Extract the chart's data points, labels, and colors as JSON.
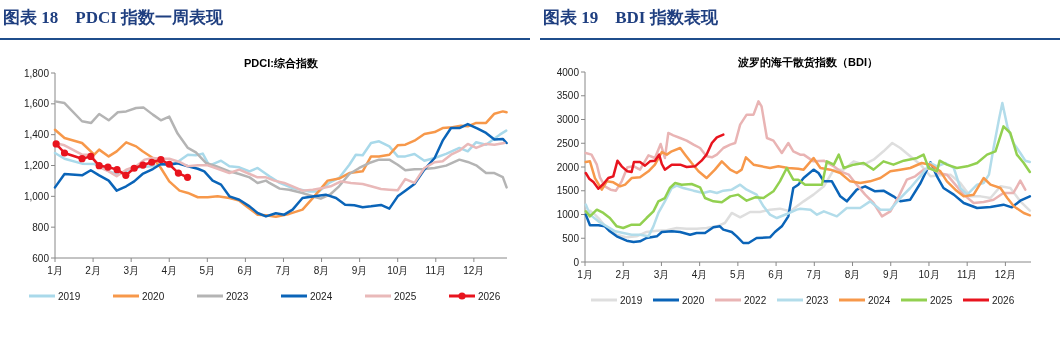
{
  "chart_data": [
    {
      "type": "line",
      "title": "图表 18　PDCI 指数一周表现",
      "subtitle": "PDCI:综合指数",
      "legend": "bottom",
      "xlim": [
        1,
        12.87
      ],
      "xticks": [
        {
          "value": 1,
          "label": "1月"
        },
        {
          "value": 2,
          "label": "2月"
        },
        {
          "value": 3,
          "label": "3月"
        },
        {
          "value": 4,
          "label": "4月"
        },
        {
          "value": 5,
          "label": "5月"
        },
        {
          "value": 6,
          "label": "6月"
        },
        {
          "value": 7,
          "label": "7月"
        },
        {
          "value": 8,
          "label": "8月"
        },
        {
          "value": 9,
          "label": "9月"
        },
        {
          "value": 10,
          "label": "10月"
        },
        {
          "value": 11,
          "label": "11月"
        },
        {
          "value": 12,
          "label": "12月"
        }
      ],
      "ylim": [
        600,
        1800
      ],
      "yticks": [
        600,
        800,
        {
          "value": 1000,
          "label": "1,000"
        },
        {
          "value": 1200,
          "label": "1,200"
        },
        {
          "value": 1400,
          "label": "1,400"
        },
        {
          "value": 1600,
          "label": "1,600"
        },
        {
          "value": 1800,
          "label": "1,800"
        }
      ],
      "series": [
        {
          "name": "2019",
          "color": "#a9d9ea",
          "x": [
            1,
            1.25,
            1.71,
            2.03,
            2.43,
            2.65,
            2.95,
            3.22,
            3.52,
            4.18,
            4.49,
            4.7,
            4.88,
            5.05,
            5.36,
            5.58,
            5.84,
            6.11,
            6.32,
            6.63,
            6.9,
            7.24,
            7.68,
            7.94,
            8.2,
            8.46,
            8.73,
            8.9,
            9.08,
            9.3,
            9.51,
            9.78,
            10,
            10.2,
            10.44,
            10.7,
            10.97,
            11.27,
            11.62,
            11.84,
            12.06,
            12.32,
            12.68,
            12.85
          ],
          "values": [
            1281,
            1244,
            1212,
            1210,
            1162,
            1141,
            1173,
            1188,
            1195,
            1216,
            1270,
            1266,
            1277,
            1199,
            1231,
            1195,
            1188,
            1162,
            1184,
            1130,
            1087,
            1054,
            1032,
            1032,
            1087,
            1119,
            1205,
            1270,
            1266,
            1346,
            1357,
            1324,
            1259,
            1259,
            1275,
            1231,
            1249,
            1275,
            1314,
            1292,
            1351,
            1335,
            1400,
            1426
          ]
        },
        {
          "name": "2020",
          "color": "#f7984a",
          "x": [
            1,
            1.25,
            1.71,
            2.03,
            2.16,
            2.41,
            2.62,
            2.87,
            3.13,
            3.3,
            3.57,
            3.78,
            4,
            4.27,
            4.49,
            4.75,
            5.01,
            5.27,
            5.58,
            5.84,
            6.06,
            6.32,
            6.54,
            6.8,
            7.15,
            7.5,
            7.81,
            8.16,
            8.46,
            8.73,
            9.08,
            9.3,
            9.51,
            9.78,
            10,
            10.2,
            10.44,
            10.7,
            10.97,
            11.18,
            11.44,
            11.66,
            11.84,
            12.06,
            12.32,
            12.54,
            12.76,
            12.86
          ],
          "values": [
            1432,
            1378,
            1346,
            1270,
            1303,
            1259,
            1292,
            1350,
            1324,
            1292,
            1249,
            1184,
            1097,
            1037,
            1022,
            994,
            994,
            1000,
            989,
            972,
            929,
            881,
            877,
            868,
            886,
            914,
            1000,
            1102,
            1115,
            1151,
            1162,
            1259,
            1259,
            1270,
            1331,
            1335,
            1361,
            1404,
            1417,
            1443,
            1448,
            1458,
            1454,
            1476,
            1476,
            1536,
            1551,
            1545
          ]
        },
        {
          "name": "2023",
          "color": "#b4b4b4",
          "x": [
            1,
            1.25,
            1.71,
            1.95,
            2.16,
            2.41,
            2.65,
            2.87,
            3.13,
            3.32,
            3.57,
            3.78,
            4,
            4.22,
            4.49,
            4.7,
            4.97,
            5.23,
            5.58,
            5.84,
            6.11,
            6.32,
            6.54,
            6.63,
            6.9,
            7.15,
            7.5,
            7.85,
            7.98,
            8.24,
            8.46,
            8.73,
            8.99,
            9.25,
            9.51,
            9.78,
            10,
            10.2,
            10.44,
            10.7,
            10.97,
            11.27,
            11.62,
            11.84,
            12.06,
            12.32,
            12.54,
            12.76,
            12.86
          ],
          "values": [
            1616,
            1605,
            1487,
            1476,
            1534,
            1493,
            1545,
            1551,
            1573,
            1577,
            1530,
            1493,
            1517,
            1407,
            1314,
            1285,
            1216,
            1195,
            1162,
            1145,
            1123,
            1087,
            1102,
            1087,
            1050,
            1043,
            1022,
            994,
            985,
            1015,
            1065,
            1145,
            1184,
            1216,
            1238,
            1238,
            1205,
            1169,
            1175,
            1177,
            1184,
            1199,
            1238,
            1223,
            1201,
            1151,
            1151,
            1125,
            1058
          ]
        },
        {
          "name": "2024",
          "color": "#0a64b8",
          "x": [
            1,
            1.25,
            1.71,
            1.94,
            2.16,
            2.41,
            2.62,
            2.87,
            3.08,
            3.3,
            3.57,
            3.78,
            4,
            4.22,
            4.49,
            4.75,
            4.92,
            5.14,
            5.36,
            5.58,
            5.84,
            6.11,
            6.32,
            6.54,
            6.8,
            7.02,
            7.24,
            7.5,
            7.81,
            8.11,
            8.38,
            8.62,
            8.86,
            9.08,
            9.3,
            9.56,
            9.78,
            10,
            10.2,
            10.44,
            10.7,
            10.97,
            11.18,
            11.4,
            11.62,
            11.84,
            12.1,
            12.32,
            12.54,
            12.76,
            12.86
          ],
          "values": [
            1058,
            1145,
            1136,
            1169,
            1136,
            1102,
            1037,
            1065,
            1097,
            1145,
            1177,
            1210,
            1205,
            1214,
            1195,
            1179,
            1162,
            1102,
            1076,
            1000,
            978,
            935,
            892,
            870,
            890,
            881,
            914,
            989,
            1000,
            1011,
            989,
            946,
            942,
            929,
            935,
            944,
            920,
            1000,
            1037,
            1080,
            1173,
            1249,
            1361,
            1443,
            1443,
            1469,
            1439,
            1411,
            1368,
            1372,
            1346
          ]
        },
        {
          "name": "2025",
          "color": "#e9b9b9",
          "x": [
            1,
            1.25,
            1.71,
            1.94,
            2.16,
            2.41,
            2.62,
            2.87,
            3.13,
            3.35,
            3.57,
            3.78,
            4,
            4.27,
            4.49,
            4.75,
            5.01,
            5.27,
            5.58,
            5.84,
            6.11,
            6.32,
            6.54,
            6.76,
            7.02,
            7.24,
            7.5,
            7.77,
            8.03,
            8.24,
            8.51,
            8.77,
            9.08,
            9.3,
            9.56,
            9.78,
            10,
            10.2,
            10.44,
            10.7,
            10.97,
            11.18,
            11.4,
            11.62,
            11.84,
            12.06,
            12.32,
            12.54,
            12.8
          ],
          "values": [
            1346,
            1331,
            1270,
            1270,
            1190,
            1162,
            1130,
            1173,
            1195,
            1238,
            1249,
            1244,
            1244,
            1223,
            1195,
            1201,
            1201,
            1179,
            1151,
            1173,
            1145,
            1123,
            1123,
            1102,
            1087,
            1065,
            1037,
            1043,
            1054,
            1065,
            1097,
            1087,
            1080,
            1065,
            1048,
            1043,
            1039,
            1112,
            1087,
            1184,
            1221,
            1227,
            1270,
            1296,
            1340,
            1314,
            1340,
            1335,
            1346
          ]
        },
        {
          "name": "2026",
          "color": "#e8141e",
          "marker": "circle",
          "x": [
            1.03,
            1.25,
            1.71,
            1.94,
            2.16,
            2.39,
            2.63,
            2.86,
            3.08,
            3.31,
            3.54,
            3.78,
            4,
            4.24,
            4.48
          ],
          "values": [
            1340,
            1281,
            1244,
            1259,
            1199,
            1190,
            1173,
            1136,
            1182,
            1203,
            1221,
            1238,
            1208,
            1151,
            1123
          ]
        }
      ]
    },
    {
      "type": "line",
      "title": "图表 19　BDI 指数表现",
      "subtitle": "波罗的海干散货指数（BDI）",
      "legend": "bottom",
      "xlim": [
        1,
        12.67
      ],
      "xticks": [
        {
          "value": 1,
          "label": "1月"
        },
        {
          "value": 2,
          "label": "2月"
        },
        {
          "value": 3,
          "label": "3月"
        },
        {
          "value": 4,
          "label": "4月"
        },
        {
          "value": 5,
          "label": "5月"
        },
        {
          "value": 6,
          "label": "6月"
        },
        {
          "value": 7,
          "label": "7月"
        },
        {
          "value": 8,
          "label": "8月"
        },
        {
          "value": 9,
          "label": "9月"
        },
        {
          "value": 10,
          "label": "10月"
        },
        {
          "value": 11,
          "label": "11月"
        },
        {
          "value": 12,
          "label": "12月"
        }
      ],
      "ylim": [
        0,
        4000
      ],
      "yticks": [
        0,
        500,
        1000,
        1500,
        2000,
        2500,
        3000,
        3500,
        4000
      ],
      "series": [
        {
          "name": "2019",
          "color": "#dedede",
          "x": [
            1.02,
            1.13,
            1.26,
            1.39,
            1.57,
            1.83,
            2.09,
            2.35,
            2.61,
            2.88,
            3.14,
            3.4,
            3.66,
            3.92,
            4.18,
            4.45,
            4.66,
            4.84,
            5.06,
            5.32,
            5.58,
            5.84,
            6.1,
            6.37,
            6.72,
            6.98,
            7.25,
            7.51,
            7.77,
            8.03,
            8.29,
            8.55,
            8.81,
            9.04,
            9.25,
            9.51,
            9.78,
            10.04,
            10.3,
            10.56,
            10.82,
            11.08,
            11.35,
            11.61,
            11.87,
            12.13,
            12.39,
            12.64
          ],
          "values": [
            1067,
            1081,
            997,
            891,
            716,
            575,
            519,
            540,
            632,
            660,
            667,
            716,
            702,
            702,
            716,
            751,
            821,
            1032,
            940,
            1053,
            1053,
            1102,
            1123,
            1067,
            1277,
            1418,
            1593,
            1944,
            1944,
            2119,
            2049,
            2154,
            2330,
            2505,
            2400,
            2225,
            2049,
            1804,
            1825,
            1839,
            1663,
            1382,
            1382,
            1347,
            1593,
            1558,
            1277,
            1081
          ]
        },
        {
          "name": "2020",
          "color": "#0a64b8",
          "x": [
            1.02,
            1.13,
            1.35,
            1.52,
            1.65,
            1.83,
            2.09,
            2.27,
            2.44,
            2.61,
            2.88,
            3.01,
            3.27,
            3.49,
            3.75,
            3.92,
            4.14,
            4.36,
            4.53,
            4.62,
            4.84,
            4.97,
            5.14,
            5.28,
            5.49,
            5.84,
            5.97,
            6.15,
            6.32,
            6.45,
            6.58,
            6.72,
            6.98,
            7.11,
            7.25,
            7.46,
            7.68,
            7.85,
            8.11,
            8.33,
            8.59,
            8.81,
            9.07,
            9.25,
            9.51,
            9.78,
            10.04,
            10.21,
            10.38,
            10.65,
            10.91,
            11.26,
            11.61,
            11.95,
            12.17,
            12.39,
            12.64
          ],
          "values": [
            997,
            772,
            772,
            751,
            646,
            540,
            449,
            421,
            435,
            505,
            540,
            632,
            646,
            632,
            575,
            611,
            611,
            730,
            751,
            681,
            632,
            540,
            400,
            400,
            505,
            519,
            632,
            751,
            962,
            1558,
            1628,
            1769,
            1944,
            1874,
            1698,
            1698,
            1382,
            1277,
            1523,
            1593,
            1488,
            1502,
            1382,
            1277,
            1312,
            1663,
            2098,
            1804,
            1558,
            1418,
            1242,
            1137,
            1158,
            1207,
            1151,
            1291,
            1382
          ]
        },
        {
          "name": "2022",
          "color": "#e9b4b4",
          "x": [
            1.02,
            1.17,
            1.31,
            1.39,
            1.52,
            1.67,
            1.81,
            1.96,
            2.11,
            2.28,
            2.44,
            2.66,
            2.83,
            2.98,
            3.09,
            3.18,
            3.31,
            3.49,
            3.66,
            3.84,
            4.01,
            4.18,
            4.32,
            4.45,
            4.62,
            4.8,
            4.93,
            5.06,
            5.23,
            5.41,
            5.54,
            5.62,
            5.76,
            5.93,
            6.15,
            6.32,
            6.45,
            6.63,
            6.72,
            6.98,
            7.25,
            7.51,
            7.68,
            7.9,
            8.11,
            8.33,
            8.55,
            8.77,
            8.99,
            9.21,
            9.42,
            9.64,
            9.86,
            10.04,
            10.25,
            10.47,
            10.69,
            10.91,
            11.17,
            11.43,
            11.69,
            11.95,
            12.21,
            12.39,
            12.52
          ],
          "values": [
            2295,
            2260,
            2049,
            1783,
            1593,
            1523,
            1502,
            1698,
            1993,
            2014,
            1944,
            2246,
            2190,
            2484,
            2190,
            2716,
            2667,
            2611,
            2555,
            2470,
            2400,
            2225,
            2204,
            2260,
            2400,
            2470,
            2505,
            2891,
            3102,
            3102,
            3383,
            3277,
            2611,
            2555,
            2295,
            2505,
            2330,
            2260,
            2260,
            2119,
            2133,
            2014,
            1909,
            1839,
            1628,
            1418,
            1242,
            961,
            1067,
            1382,
            1733,
            1804,
            1944,
            1979,
            1874,
            1839,
            1628,
            1418,
            1242,
            1263,
            1312,
            1453,
            1453,
            1712,
            1523
          ]
        },
        {
          "name": "2023",
          "color": "#b2dcea",
          "x": [
            1.02,
            1.13,
            1.35,
            1.57,
            1.79,
            2,
            2.22,
            2.44,
            2.66,
            2.79,
            2.92,
            3.09,
            3.27,
            3.4,
            3.57,
            3.84,
            4.1,
            4.27,
            4.45,
            4.62,
            4.84,
            5.06,
            5.23,
            5.49,
            5.67,
            5.84,
            6.02,
            6.28,
            6.54,
            6.63,
            6.9,
            7.07,
            7.25,
            7.59,
            7.85,
            8.2,
            8.46,
            8.73,
            8.99,
            9.25,
            9.51,
            9.81,
            10.04,
            10.21,
            10.43,
            10.65,
            10.82,
            11,
            11.26,
            11.43,
            11.57,
            11.69,
            11.83,
            11.92,
            12.05,
            12.21,
            12.39,
            12.52,
            12.64
          ],
          "values": [
            1210,
            997,
            856,
            751,
            646,
            611,
            575,
            575,
            540,
            751,
            1032,
            1277,
            1558,
            1607,
            1558,
            1502,
            1453,
            1488,
            1453,
            1502,
            1523,
            1628,
            1523,
            1418,
            1172,
            997,
            926,
            1011,
            1102,
            1120,
            1102,
            997,
            1067,
            961,
            1137,
            1137,
            1277,
            1102,
            1102,
            1347,
            1558,
            1839,
            2084,
            2014,
            2084,
            1979,
            1558,
            1418,
            1628,
            1663,
            1839,
            2400,
            2997,
            3348,
            2856,
            2505,
            2295,
            2133,
            2105
          ]
        },
        {
          "name": "2024",
          "color": "#f7984a",
          "x": [
            1.02,
            1.13,
            1.26,
            1.44,
            1.57,
            1.74,
            1.92,
            2.05,
            2.22,
            2.44,
            2.66,
            2.83,
            3.01,
            3.14,
            3.27,
            3.49,
            3.62,
            3.79,
            3.97,
            4.18,
            4.4,
            4.58,
            4.8,
            4.97,
            5.1,
            5.21,
            5.41,
            5.62,
            5.84,
            6.06,
            6.32,
            6.58,
            6.72,
            6.98,
            7.16,
            7.42,
            7.68,
            7.94,
            8.2,
            8.46,
            8.73,
            8.99,
            9.25,
            9.51,
            9.81,
            10.04,
            10.3,
            10.47,
            10.69,
            10.91,
            11.17,
            11.43,
            11.61,
            11.87,
            12.05,
            12.22,
            12.48,
            12.64
          ],
          "values": [
            2105,
            2119,
            1768,
            1523,
            1698,
            1677,
            1593,
            1628,
            1768,
            1783,
            1909,
            2049,
            2316,
            2260,
            2330,
            2400,
            2260,
            2084,
            1909,
            1768,
            1944,
            2119,
            1944,
            1874,
            1944,
            2204,
            2049,
            2014,
            1979,
            2014,
            1979,
            1965,
            1944,
            2190,
            1979,
            1944,
            1874,
            1698,
            1663,
            1698,
            1768,
            1909,
            1944,
            1979,
            2084,
            2049,
            1909,
            1698,
            1523,
            1382,
            1418,
            1768,
            1628,
            1558,
            1347,
            1172,
            1032,
            983
          ]
        },
        {
          "name": "2025",
          "color": "#92d050",
          "x": [
            1.02,
            1.13,
            1.31,
            1.48,
            1.65,
            1.83,
            2,
            2.22,
            2.44,
            2.61,
            2.79,
            2.92,
            3.09,
            3.22,
            3.36,
            3.53,
            3.79,
            4.01,
            4.14,
            4.36,
            4.58,
            4.8,
            5.01,
            5.23,
            5.45,
            5.67,
            5.93,
            6.1,
            6.28,
            6.45,
            6.58,
            6.76,
            6.89,
            7.2,
            7.33,
            7.51,
            7.64,
            7.77,
            8.03,
            8.29,
            8.55,
            8.81,
            9.07,
            9.34,
            9.69,
            9.86,
            9.99,
            10.21,
            10.28,
            10.47,
            10.73,
            11,
            11.26,
            11.52,
            11.74,
            11.95,
            12.13,
            12.3,
            12.48,
            12.64
          ],
          "values": [
            1067,
            961,
            1102,
            1032,
            926,
            751,
            716,
            786,
            786,
            926,
            1067,
            1277,
            1347,
            1558,
            1663,
            1628,
            1642,
            1572,
            1347,
            1277,
            1256,
            1382,
            1418,
            1291,
            1361,
            1347,
            1488,
            1698,
            1979,
            1733,
            1733,
            1628,
            1628,
            1628,
            2119,
            2049,
            2260,
            1979,
            2049,
            2084,
            1944,
            2119,
            2049,
            2133,
            2190,
            2260,
            1979,
            1909,
            2133,
            2049,
            1979,
            2014,
            2084,
            2260,
            2330,
            2856,
            2716,
            2260,
            2084,
            1895
          ]
        },
        {
          "name": "2026",
          "color": "#e8141e",
          "x": [
            1.02,
            1.11,
            1.22,
            1.35,
            1.48,
            1.61,
            1.74,
            1.85,
            1.96,
            2.11,
            2.22,
            2.28,
            2.44,
            2.57,
            2.7,
            2.83,
            2.94,
            3.01,
            3.09,
            3.27,
            3.49,
            3.66,
            3.88,
            4.05,
            4.18,
            4.32,
            4.45,
            4.62
          ],
          "values": [
            1874,
            1754,
            1684,
            1544,
            1642,
            1768,
            1804,
            2133,
            2014,
            1909,
            1895,
            2105,
            2105,
            2028,
            2119,
            2133,
            2260,
            2063,
            1944,
            2049,
            2049,
            2000,
            2014,
            2133,
            2260,
            2505,
            2625,
            2681
          ]
        }
      ]
    }
  ]
}
